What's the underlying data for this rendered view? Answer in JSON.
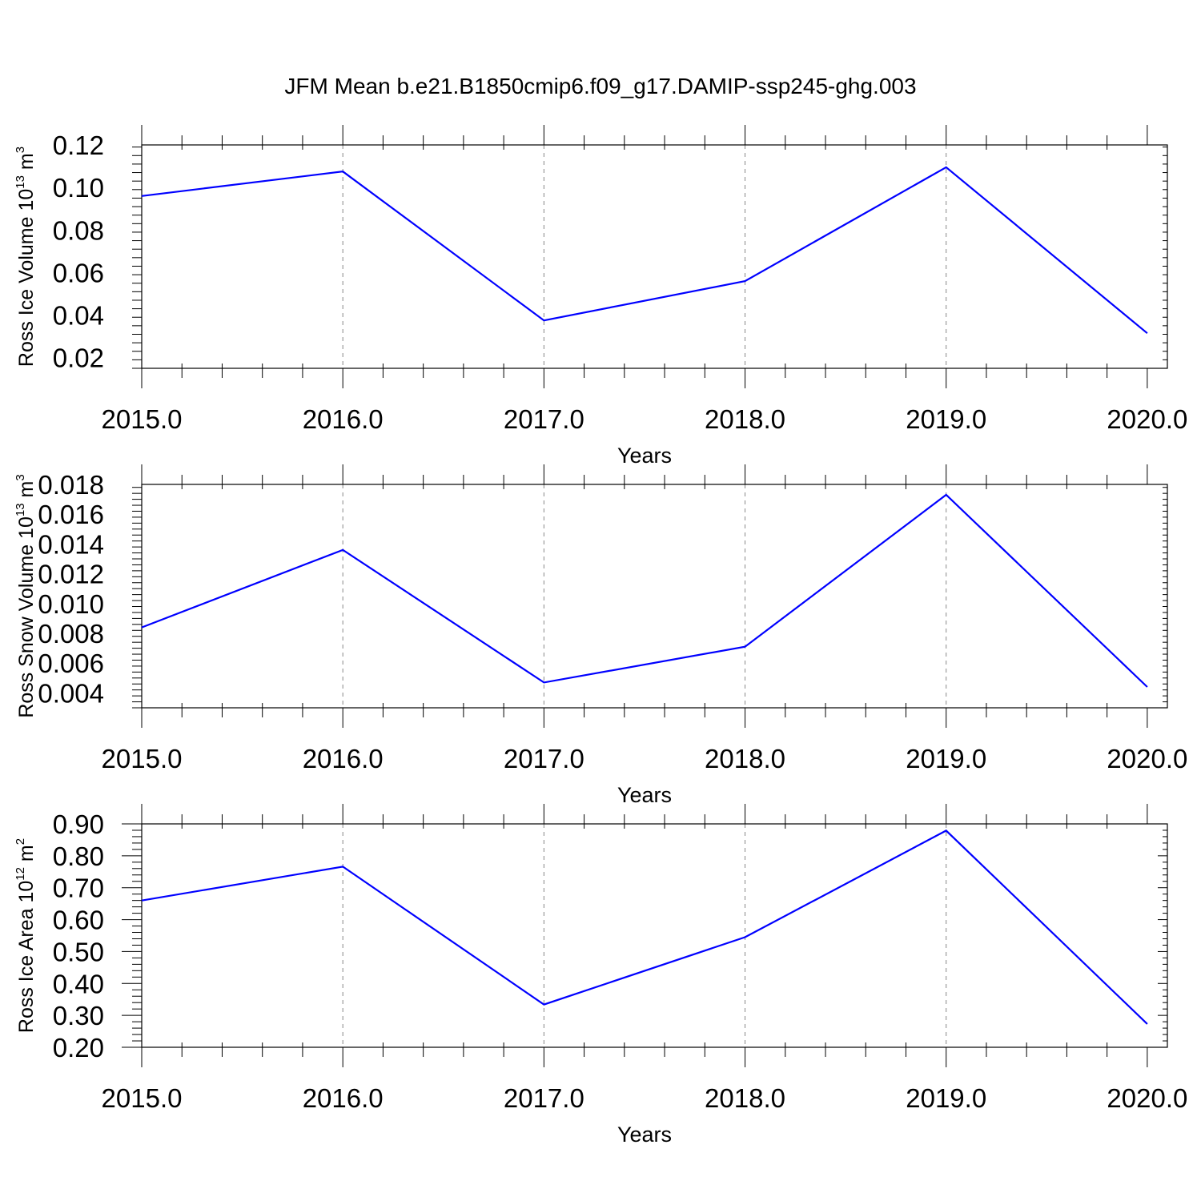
{
  "figure": {
    "title": "JFM Mean b.e21.B1850cmip6.f09_g17.DAMIP-ssp245-ghg.003"
  },
  "chart_data": [
    {
      "type": "line",
      "xlabel": "Years",
      "ylabel": {
        "text": "Ross Ice Volume 10",
        "exp": "13",
        "unit": " m",
        "unit_exp": "3"
      },
      "x": [
        2015,
        2016,
        2017,
        2018,
        2019,
        2020
      ],
      "series": [
        {
          "values": [
            0.096,
            0.1075,
            0.0375,
            0.056,
            0.1095,
            0.0315
          ],
          "color": "#0000ff"
        }
      ],
      "xlim": [
        2015,
        2020.1
      ],
      "ylim": [
        0.015,
        0.12
      ],
      "x_ticks": [
        "2015.0",
        "2016.0",
        "2017.0",
        "2018.0",
        "2019.0",
        "2020.0"
      ],
      "y_ticks": [
        "0.02",
        "0.04",
        "0.06",
        "0.08",
        "0.10",
        "0.12"
      ],
      "grid": "vertical dashed at major x ticks"
    },
    {
      "type": "line",
      "xlabel": "Years",
      "ylabel": {
        "text": "Ross Snow Volume 10",
        "exp": "13",
        "unit": " m",
        "unit_exp": "3"
      },
      "x": [
        2015,
        2016,
        2017,
        2018,
        2019,
        2020
      ],
      "series": [
        {
          "values": [
            0.0084,
            0.0136,
            0.0047,
            0.0071,
            0.0173,
            0.0044
          ],
          "color": "#0000ff"
        }
      ],
      "xlim": [
        2015,
        2020.1
      ],
      "ylim": [
        0.003,
        0.018
      ],
      "x_ticks": [
        "2015.0",
        "2016.0",
        "2017.0",
        "2018.0",
        "2019.0",
        "2020.0"
      ],
      "y_ticks": [
        "0.004",
        "0.006",
        "0.008",
        "0.010",
        "0.012",
        "0.014",
        "0.016",
        "0.018"
      ],
      "grid": "vertical dashed at major x ticks"
    },
    {
      "type": "line",
      "xlabel": "Years",
      "ylabel": {
        "text": "Ross Ice Area 10",
        "exp": "12",
        "unit": " m",
        "unit_exp": "2"
      },
      "x": [
        2015,
        2016,
        2017,
        2018,
        2019,
        2020
      ],
      "series": [
        {
          "values": [
            0.66,
            0.766,
            0.334,
            0.545,
            0.879,
            0.273
          ],
          "color": "#0000ff"
        }
      ],
      "xlim": [
        2015,
        2020.1
      ],
      "ylim": [
        0.2,
        0.9
      ],
      "x_ticks": [
        "2015.0",
        "2016.0",
        "2017.0",
        "2018.0",
        "2019.0",
        "2020.0"
      ],
      "y_ticks": [
        "0.20",
        "0.30",
        "0.40",
        "0.50",
        "0.60",
        "0.70",
        "0.80",
        "0.90"
      ],
      "grid": "vertical dashed at major x ticks"
    }
  ]
}
